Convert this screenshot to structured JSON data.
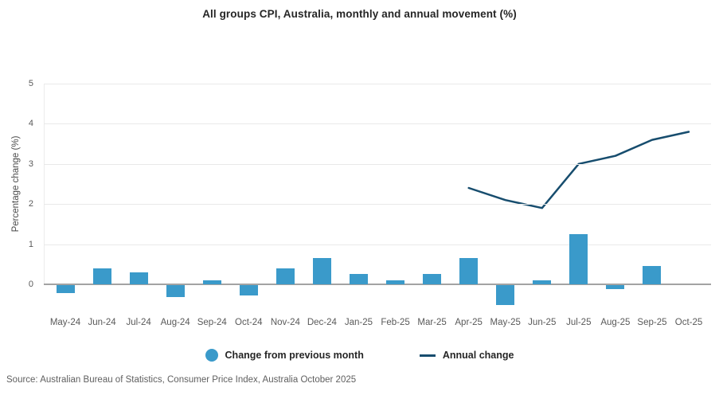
{
  "source": "Source: Australian Bureau of Statistics, Consumer Price Index, Australia October 2025",
  "colors": {
    "bar": "#3a9aca",
    "line": "#174d6e",
    "gridline": "#e9e9e9",
    "zero_line": "#a3a3a3",
    "axis_text": "#595959"
  },
  "chart_data": {
    "type": "combo-bar-line",
    "title": "All groups CPI, Australia, monthly and annual movement (%)",
    "xlabel": "",
    "ylabel": "Percentage change (%)",
    "ylim": [
      -1,
      5.5
    ],
    "yticks": [
      0,
      1,
      2,
      3,
      4,
      5
    ],
    "grid": true,
    "legend_position": "bottom",
    "categories": [
      "May-24",
      "Jun-24",
      "Jul-24",
      "Aug-24",
      "Sep-24",
      "Oct-24",
      "Nov-24",
      "Dec-24",
      "Jan-25",
      "Feb-25",
      "Mar-25",
      "Apr-25",
      "May-25",
      "Jun-25",
      "Jul-25",
      "Aug-25",
      "Sep-25",
      "Oct-25"
    ],
    "series": [
      {
        "name": "Change from previous month",
        "type": "bar",
        "values": [
          -0.2,
          0.4,
          0.3,
          -0.3,
          0.1,
          -0.25,
          0.4,
          0.65,
          0.25,
          0.1,
          0.25,
          0.65,
          -0.5,
          0.1,
          1.25,
          -0.1,
          0.45,
          0.0
        ]
      },
      {
        "name": "Annual change",
        "type": "line",
        "values": [
          null,
          null,
          null,
          null,
          null,
          null,
          null,
          null,
          null,
          null,
          null,
          2.4,
          2.1,
          1.9,
          3.0,
          3.2,
          3.6,
          3.8
        ]
      }
    ]
  }
}
